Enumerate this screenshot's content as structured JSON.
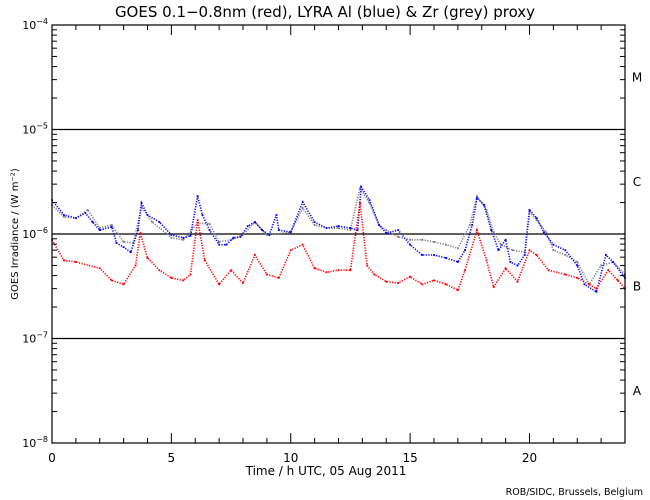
{
  "chart_data": {
    "type": "scatter",
    "title": "GOES 0.1−0.8nm (red), LYRA Al (blue) & Zr (grey) proxy",
    "xlabel": "Time / h UTC, 05 Aug 2011",
    "ylabel": "GOES Irradiance / (W m⁻²)",
    "xlim": [
      0,
      24
    ],
    "ylim": [
      1e-08,
      0.0001
    ],
    "yscale": "log",
    "xticks": [
      0,
      5,
      10,
      15,
      20
    ],
    "xtick_labels": [
      "0",
      "5",
      "10",
      "15",
      "20"
    ],
    "yticks": [
      {
        "value": 0.0001,
        "base": "10",
        "exp": "−4"
      },
      {
        "value": 1e-05,
        "base": "10",
        "exp": "−5"
      },
      {
        "value": 1e-06,
        "base": "10",
        "exp": "−6"
      },
      {
        "value": 1e-07,
        "base": "10",
        "exp": "−7"
      },
      {
        "value": 1e-08,
        "base": "10",
        "exp": "−8"
      }
    ],
    "reference_lines": [
      1e-05,
      1e-06,
      1e-07
    ],
    "flare_classes": [
      {
        "label": "M",
        "value": 3.2e-05
      },
      {
        "label": "C",
        "value": 3.2e-06
      },
      {
        "label": "B",
        "value": 3.2e-07
      },
      {
        "label": "A",
        "value": 3.2e-08
      }
    ],
    "grid": false,
    "series": [
      {
        "name": "LYRA Zr proxy",
        "color": "#808080",
        "x": [
          0,
          0.5,
          1,
          1.5,
          2,
          2.5,
          3,
          3.4,
          3.75,
          4.2,
          5,
          5.5,
          6.1,
          6.6,
          7,
          7.5,
          8,
          8.5,
          9,
          10,
          10.5,
          11,
          11.5,
          12,
          12.5,
          12.9,
          13.3,
          13.7,
          14,
          14.5,
          15,
          15.5,
          16,
          16.5,
          17,
          17.5,
          17.8,
          18.2,
          18.5,
          18.8,
          19.3,
          19.8,
          20,
          20.3,
          20.7,
          21,
          21.5,
          22,
          22.5,
          23,
          23.5,
          24
        ],
        "y": [
          1.9e-06,
          1.46e-06,
          1.42e-06,
          1.7e-06,
          1.14e-06,
          1.22e-06,
          8.4e-07,
          8.2e-07,
          1.81e-06,
          1.3e-06,
          9.2e-07,
          8.8e-07,
          1.27e-06,
          1.25e-06,
          8.4e-07,
          8.8e-07,
          9.8e-07,
          1.3e-06,
          9.8e-07,
          1.04e-06,
          1.77e-06,
          1.22e-06,
          1.14e-06,
          1.14e-06,
          1.09e-06,
          2.75e-06,
          1.98e-06,
          1.22e-06,
          1.09e-06,
          9.4e-07,
          8.8e-07,
          8.8e-07,
          8.4e-07,
          7.9e-07,
          7.3e-07,
          1.22e-06,
          2.31e-06,
          1.7e-06,
          1.04e-06,
          7.9e-07,
          7e-07,
          6.7e-07,
          1.62e-06,
          1.36e-06,
          1.04e-06,
          7e-07,
          6.3e-07,
          5.4e-07,
          3.3e-07,
          5e-07,
          5.4e-07,
          4.1e-07
        ]
      },
      {
        "name": "LYRA Al proxy",
        "color": "#0000ff",
        "x": [
          0,
          0.5,
          1,
          1.4,
          1.7,
          2,
          2.5,
          2.7,
          3,
          3.3,
          3.6,
          3.75,
          4,
          4.5,
          5,
          5.5,
          5.8,
          6.1,
          6.3,
          6.6,
          7,
          7.3,
          7.6,
          7.9,
          8.2,
          8.5,
          8.8,
          9.1,
          9.4,
          9.5,
          10,
          10.5,
          11,
          11.5,
          12,
          12.5,
          12.8,
          12.95,
          13.3,
          13.7,
          14,
          14.5,
          15,
          15.5,
          16,
          16.5,
          17,
          17.3,
          17.6,
          17.8,
          18.1,
          18.4,
          18.7,
          19,
          19.2,
          19.5,
          19.8,
          20,
          20.3,
          20.6,
          21,
          21.5,
          22,
          22.3,
          22.8,
          23.2,
          23.5,
          24
        ],
        "y": [
          2.11e-06,
          1.52e-06,
          1.42e-06,
          1.59e-06,
          1.3e-06,
          1.09e-06,
          1.17e-06,
          8.2e-07,
          7.5e-07,
          6.7e-07,
          1.09e-06,
          1.98e-06,
          1.52e-06,
          1.3e-06,
          9.8e-07,
          9.2e-07,
          9.6e-07,
          2.31e-06,
          1.52e-06,
          1.09e-06,
          7.9e-07,
          7.9e-07,
          9.2e-07,
          9.4e-07,
          1.19e-06,
          1.3e-06,
          1.09e-06,
          9.8e-07,
          1.52e-06,
          1.09e-06,
          1.04e-06,
          2.02e-06,
          1.3e-06,
          1.14e-06,
          1.19e-06,
          1.14e-06,
          1.09e-06,
          2.82e-06,
          2.11e-06,
          1.22e-06,
          1.02e-06,
          1.09e-06,
          7.9e-07,
          6.3e-07,
          6.3e-07,
          5.9e-07,
          5.4e-07,
          7e-07,
          1.22e-06,
          2.21e-06,
          1.9e-06,
          1.09e-06,
          7e-07,
          8.8e-07,
          5.4e-07,
          5e-07,
          6.3e-07,
          1.7e-06,
          1.42e-06,
          1.04e-06,
          7.9e-07,
          7e-07,
          5e-07,
          3.3e-07,
          2.8e-07,
          6.3e-07,
          5.4e-07,
          3.8e-07
        ]
      },
      {
        "name": "GOES 0.1-0.8nm",
        "color": "#ff0000",
        "x": [
          0,
          0.5,
          1,
          2,
          2.5,
          3,
          3.5,
          3.7,
          4,
          4.5,
          5,
          5.5,
          5.8,
          6.1,
          6.4,
          7,
          7.5,
          8,
          8.5,
          9,
          9.5,
          10,
          10.5,
          11,
          11.5,
          12,
          12.5,
          12.9,
          13.2,
          13.5,
          14,
          14.5,
          15,
          15.5,
          16,
          16.5,
          17,
          17.3,
          17.8,
          18.2,
          18.5,
          19,
          19.5,
          20,
          20.3,
          20.8,
          21.5,
          22,
          22.5,
          22.8,
          23.3,
          23.7,
          24
        ],
        "y": [
          8.8e-07,
          5.6e-07,
          5.4e-07,
          4.7e-07,
          3.6e-07,
          3.3e-07,
          5e-07,
          1.02e-06,
          5.9e-07,
          4.5e-07,
          3.8e-07,
          3.6e-07,
          4.1e-07,
          1.36e-06,
          5.6e-07,
          3.3e-07,
          4.5e-07,
          3.4e-07,
          6.3e-07,
          4.1e-07,
          3.8e-07,
          7e-07,
          7.9e-07,
          4.7e-07,
          4.3e-07,
          4.5e-07,
          4.5e-07,
          1.98e-06,
          5e-07,
          4.1e-07,
          3.5e-07,
          3.4e-07,
          3.9e-07,
          3.3e-07,
          3.6e-07,
          3.3e-07,
          2.9e-07,
          4.5e-07,
          1.09e-06,
          5.6e-07,
          3.1e-07,
          4.7e-07,
          3.5e-07,
          7e-07,
          6.3e-07,
          4.5e-07,
          4.1e-07,
          3.8e-07,
          3.3e-07,
          3e-07,
          4.5e-07,
          3.6e-07,
          3e-07
        ]
      }
    ]
  },
  "footer": "ROB/SIDC, Brussels, Belgium"
}
